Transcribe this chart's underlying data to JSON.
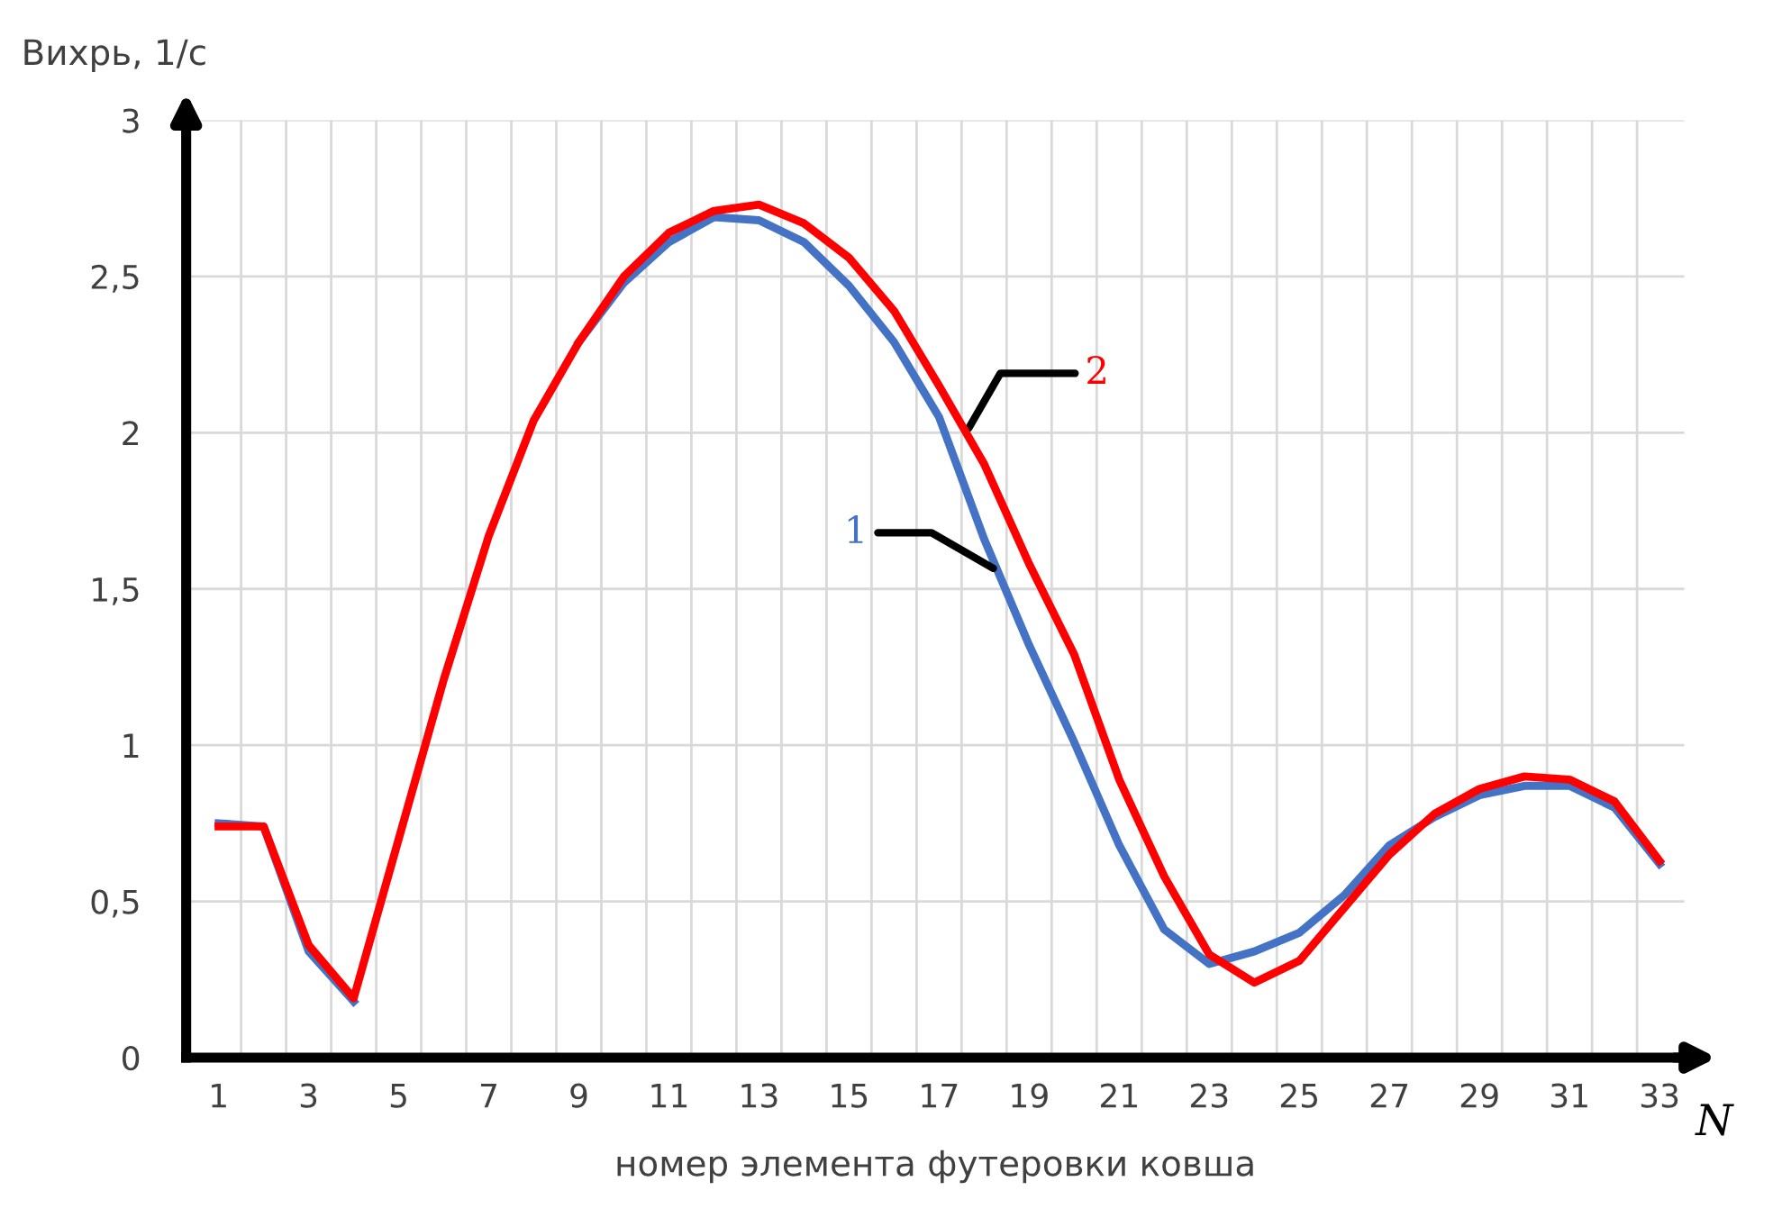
{
  "chart_data": {
    "type": "line",
    "xlabel": "номер элемента футеровки ковша",
    "ylabel": "Вихрь, 1/с",
    "annotations": [
      "N"
    ],
    "categories": [
      "1",
      null,
      "3",
      null,
      "5",
      null,
      "7",
      null,
      "9",
      null,
      "11",
      null,
      "13",
      null,
      "15",
      null,
      "17",
      null,
      "19",
      null,
      "21",
      null,
      "23",
      null,
      "25",
      null,
      "27",
      null,
      "29",
      null,
      "31",
      null,
      "33"
    ],
    "series": [
      {
        "name": "1",
        "color": "#4472c4",
        "values": [
          0.75,
          0.74,
          0.34,
          0.18,
          null,
          null,
          null,
          null,
          2.29,
          2.48,
          2.61,
          2.69,
          2.68,
          2.61,
          2.47,
          2.29,
          2.05,
          1.66,
          1.32,
          1.01,
          0.68,
          0.41,
          0.3,
          0.34,
          0.4,
          0.52,
          0.68,
          0.77,
          0.84,
          0.87,
          0.87,
          0.8,
          0.62
        ]
      },
      {
        "name": "2",
        "color": "#ff0000",
        "values": [
          0.74,
          0.74,
          0.36,
          0.19,
          0.7,
          1.21,
          1.67,
          2.04,
          2.29,
          2.5,
          2.64,
          2.71,
          2.73,
          2.67,
          2.56,
          2.39,
          2.15,
          1.9,
          1.58,
          1.29,
          0.89,
          0.58,
          0.33,
          0.24,
          0.31,
          0.48,
          0.65,
          0.78,
          0.86,
          0.9,
          0.89,
          0.82,
          0.63
        ]
      }
    ],
    "ylim": [
      0,
      3
    ],
    "yticks": [
      0,
      {
        "value": 0.5,
        "label": "0,5"
      },
      1,
      {
        "value": 1.5,
        "label": "1,5"
      },
      2,
      {
        "value": 2.5,
        "label": "2,5"
      },
      3
    ],
    "grid": true,
    "legend": false,
    "marker": "none",
    "line_style": "solid"
  }
}
